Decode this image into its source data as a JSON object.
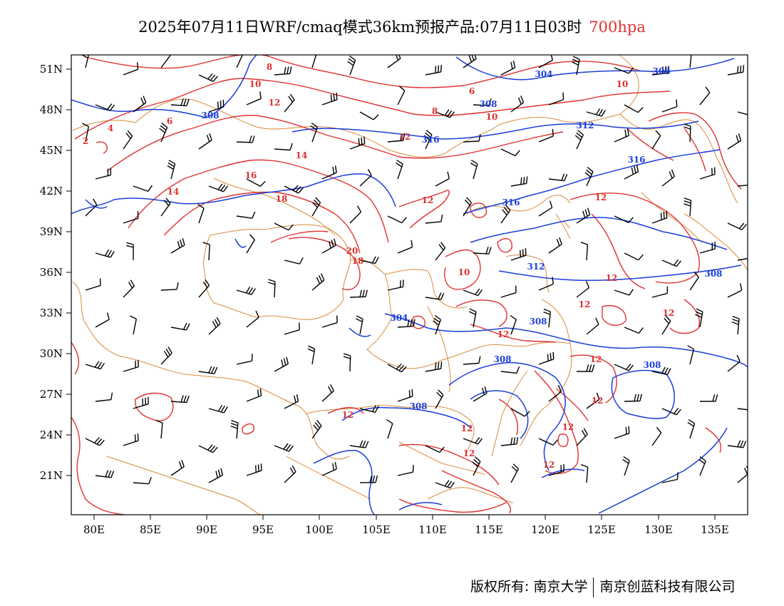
{
  "title": {
    "main": "2025年07月11日WRF/cmaq模式36km预报产品:07月11日03时",
    "level": "700hpa"
  },
  "colors": {
    "temperature": "#e03030",
    "geopotential": "#1a3ed8",
    "border": "#d98a3a",
    "barb": "#000000"
  },
  "axes": {
    "lon_labels": [
      "80E",
      "85E",
      "90E",
      "95E",
      "100E",
      "105E",
      "110E",
      "115E",
      "120E",
      "125E",
      "130E",
      "135E"
    ],
    "lat_labels": [
      "51N",
      "48N",
      "45N",
      "42N",
      "39N",
      "36N",
      "33N",
      "30N",
      "27N",
      "24N",
      "21N"
    ]
  },
  "contour_labels": {
    "geopotential": [
      "304",
      "308",
      "308",
      "308",
      "312",
      "316",
      "316",
      "316",
      "312",
      "308",
      "304",
      "308",
      "308",
      "308",
      "308"
    ],
    "temperature": [
      "8",
      "10",
      "12",
      "6",
      "8",
      "10",
      "10",
      "4",
      "6",
      "2",
      "14",
      "16",
      "18",
      "14",
      "12",
      "12",
      "12",
      "20",
      "18",
      "10",
      "12",
      "12",
      "12",
      "12",
      "12",
      "12",
      "12",
      "12",
      "12",
      "12",
      "12"
    ]
  },
  "footer": {
    "left": "版权所有: 南京大学",
    "right": "南京创蓝科技有限公司"
  }
}
